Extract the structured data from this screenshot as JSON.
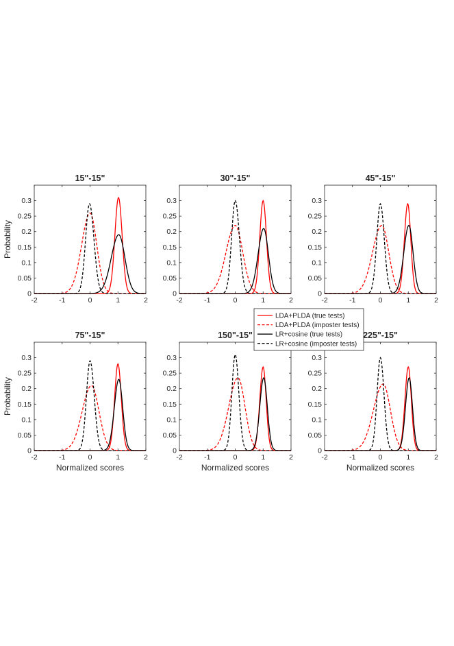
{
  "legend": [
    {
      "name": "LDA+PLDA (true tests)",
      "color": "#ff0000",
      "dash": "solid"
    },
    {
      "name": "LDA+PLDA (imposter tests)",
      "color": "#ff0000",
      "dash": "dashed"
    },
    {
      "name": "LR+cosine (true tests)",
      "color": "#000000",
      "dash": "solid"
    },
    {
      "name": "LR+cosine (imposter tests)",
      "color": "#000000",
      "dash": "dashed"
    }
  ],
  "chart_data": [
    {
      "type": "line",
      "title": "15\"-15\"",
      "xlabel": "",
      "ylabel": "Probability",
      "xlim": [
        -2,
        2
      ],
      "ylim": [
        0,
        0.35
      ],
      "xticks": [
        "-2",
        "-1",
        "0",
        "1",
        "2"
      ],
      "yticks": [
        "0",
        "0.05",
        "0.1",
        "0.15",
        "0.2",
        "0.25",
        "0.3"
      ],
      "series": [
        {
          "name": "LDA+PLDA (true tests)",
          "peak": 0.31,
          "mean": 1.02,
          "sd_left": 0.13,
          "sd_right": 0.13
        },
        {
          "name": "LDA+PLDA (imposter tests)",
          "peak": 0.26,
          "mean": 0.0,
          "sd_left": 0.3,
          "sd_right": 0.24
        },
        {
          "name": "LR+cosine (true tests)",
          "peak": 0.19,
          "mean": 1.03,
          "sd_left": 0.27,
          "sd_right": 0.22
        },
        {
          "name": "LR+cosine (imposter tests)",
          "peak": 0.29,
          "mean": -0.02,
          "sd_left": 0.14,
          "sd_right": 0.16
        }
      ]
    },
    {
      "type": "line",
      "title": "30\"-15\"",
      "xlabel": "",
      "ylabel": "",
      "xlim": [
        -2,
        2
      ],
      "ylim": [
        0,
        0.35
      ],
      "xticks": [
        "-2",
        "-1",
        "0",
        "1",
        "2"
      ],
      "yticks": [
        "0",
        "0.05",
        "0.1",
        "0.15",
        "0.2",
        "0.25",
        "0.3"
      ],
      "series": [
        {
          "name": "LDA+PLDA (true tests)",
          "peak": 0.3,
          "mean": 1.0,
          "sd_left": 0.12,
          "sd_right": 0.12
        },
        {
          "name": "LDA+PLDA (imposter tests)",
          "peak": 0.22,
          "mean": 0.0,
          "sd_left": 0.33,
          "sd_right": 0.27
        },
        {
          "name": "LR+cosine (true tests)",
          "peak": 0.21,
          "mean": 1.02,
          "sd_left": 0.2,
          "sd_right": 0.17
        },
        {
          "name": "LR+cosine (imposter tests)",
          "peak": 0.3,
          "mean": 0.0,
          "sd_left": 0.13,
          "sd_right": 0.15
        }
      ]
    },
    {
      "type": "line",
      "title": "45\"-15\"",
      "xlabel": "",
      "ylabel": "",
      "xlim": [
        -2,
        2
      ],
      "ylim": [
        0,
        0.35
      ],
      "xticks": [
        "-2",
        "-1",
        "0",
        "1",
        "2"
      ],
      "yticks": [
        "0",
        "0.05",
        "0.1",
        "0.15",
        "0.2",
        "0.25",
        "0.3"
      ],
      "series": [
        {
          "name": "LDA+PLDA (true tests)",
          "peak": 0.29,
          "mean": 0.98,
          "sd_left": 0.12,
          "sd_right": 0.11
        },
        {
          "name": "LDA+PLDA (imposter tests)",
          "peak": 0.22,
          "mean": 0.05,
          "sd_left": 0.33,
          "sd_right": 0.25
        },
        {
          "name": "LR+cosine (true tests)",
          "peak": 0.22,
          "mean": 1.02,
          "sd_left": 0.18,
          "sd_right": 0.15
        },
        {
          "name": "LR+cosine (imposter tests)",
          "peak": 0.29,
          "mean": 0.0,
          "sd_left": 0.13,
          "sd_right": 0.14
        }
      ]
    },
    {
      "type": "line",
      "title": "75\"-15\"",
      "xlabel": "Normalized scores",
      "ylabel": "Probability",
      "xlim": [
        -2,
        2
      ],
      "ylim": [
        0,
        0.35
      ],
      "xticks": [
        "-2",
        "-1",
        "0",
        "1",
        "2"
      ],
      "yticks": [
        "0",
        "0.05",
        "0.1",
        "0.15",
        "0.2",
        "0.25",
        "0.3"
      ],
      "series": [
        {
          "name": "LDA+PLDA (true tests)",
          "peak": 0.28,
          "mean": 1.0,
          "sd_left": 0.12,
          "sd_right": 0.12
        },
        {
          "name": "LDA+PLDA (imposter tests)",
          "peak": 0.21,
          "mean": 0.05,
          "sd_left": 0.33,
          "sd_right": 0.27
        },
        {
          "name": "LR+cosine (true tests)",
          "peak": 0.23,
          "mean": 1.03,
          "sd_left": 0.16,
          "sd_right": 0.14
        },
        {
          "name": "LR+cosine (imposter tests)",
          "peak": 0.29,
          "mean": 0.0,
          "sd_left": 0.13,
          "sd_right": 0.15
        }
      ]
    },
    {
      "type": "line",
      "title": "150\"-15\"",
      "xlabel": "Normalized scores",
      "ylabel": "",
      "xlim": [
        -2,
        2
      ],
      "ylim": [
        0,
        0.35
      ],
      "xticks": [
        "-2",
        "-1",
        "0",
        "1",
        "2"
      ],
      "yticks": [
        "0",
        "0.05",
        "0.1",
        "0.15",
        "0.2",
        "0.25",
        "0.3"
      ],
      "series": [
        {
          "name": "LDA+PLDA (true tests)",
          "peak": 0.27,
          "mean": 1.0,
          "sd_left": 0.12,
          "sd_right": 0.11
        },
        {
          "name": "LDA+PLDA (imposter tests)",
          "peak": 0.235,
          "mean": 0.1,
          "sd_left": 0.33,
          "sd_right": 0.25
        },
        {
          "name": "LR+cosine (true tests)",
          "peak": 0.235,
          "mean": 1.02,
          "sd_left": 0.14,
          "sd_right": 0.13
        },
        {
          "name": "LR+cosine (imposter tests)",
          "peak": 0.31,
          "mean": 0.0,
          "sd_left": 0.12,
          "sd_right": 0.13
        }
      ]
    },
    {
      "type": "line",
      "title": "225\"-15\"",
      "xlabel": "Normalized scores",
      "ylabel": "",
      "xlim": [
        -2,
        2
      ],
      "ylim": [
        0,
        0.35
      ],
      "xticks": [
        "-2",
        "-1",
        "0",
        "1",
        "2"
      ],
      "yticks": [
        "0",
        "0.05",
        "0.1",
        "0.15",
        "0.2",
        "0.25",
        "0.3"
      ],
      "series": [
        {
          "name": "LDA+PLDA (true tests)",
          "peak": 0.27,
          "mean": 1.0,
          "sd_left": 0.12,
          "sd_right": 0.11
        },
        {
          "name": "LDA+PLDA (imposter tests)",
          "peak": 0.215,
          "mean": 0.1,
          "sd_left": 0.35,
          "sd_right": 0.26
        },
        {
          "name": "LR+cosine (true tests)",
          "peak": 0.235,
          "mean": 1.03,
          "sd_left": 0.13,
          "sd_right": 0.12
        },
        {
          "name": "LR+cosine (imposter tests)",
          "peak": 0.3,
          "mean": 0.0,
          "sd_left": 0.12,
          "sd_right": 0.13
        }
      ]
    }
  ]
}
